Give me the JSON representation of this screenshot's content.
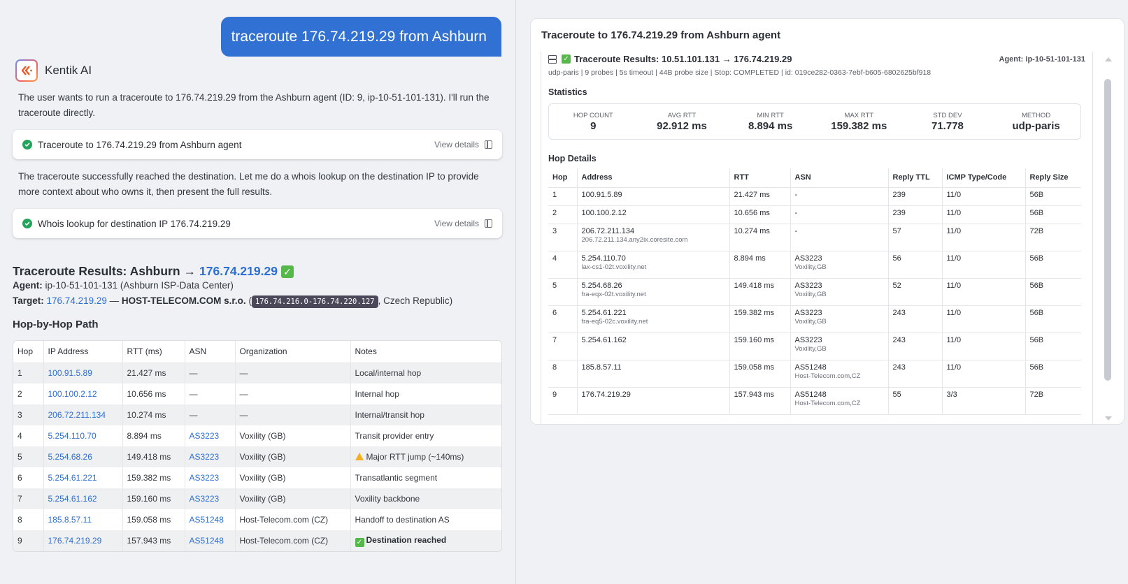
{
  "user_message": "traceroute 176.74.219.29 from Ashburn",
  "assistant": {
    "name": "Kentik AI",
    "intro_text": "The user wants to run a traceroute to 176.74.219.29 from the Ashburn agent (ID: 9, ip-10-51-101-131). I'll run the traceroute directly.",
    "tool_calls": [
      {
        "title": "Traceroute to 176.74.219.29 from Ashburn agent",
        "status": "success",
        "action_label": "View details"
      },
      {
        "title": "Whois lookup for destination IP 176.74.219.29",
        "status": "success",
        "action_label": "View details"
      }
    ],
    "middle_text": "The traceroute successfully reached the destination. Let me do a whois lookup on the destination IP to provide more context about who owns it, then present the full results.",
    "results": {
      "title_prefix": "Traceroute Results: Ashburn",
      "arrow": "→",
      "title_ip": "176.74.219.29",
      "agent_label": "Agent:",
      "agent_value": "ip-10-51-101-131 (Ashburn ISP-Data Center)",
      "target_label": "Target:",
      "target_ip": "176.74.219.29",
      "target_dash": "—",
      "target_org": "HOST-TELECOM.COM s.r.o.",
      "target_range": "176.74.216.0-176.74.220.127",
      "target_country": ", Czech Republic)",
      "section_title": "Hop-by-Hop Path",
      "columns": [
        "Hop",
        "IP Address",
        "RTT (ms)",
        "ASN",
        "Organization",
        "Notes"
      ],
      "rows": [
        {
          "hop": "1",
          "ip": "100.91.5.89",
          "rtt": "21.427 ms",
          "asn": "—",
          "org": "—",
          "notes": "Local/internal hop",
          "flag": ""
        },
        {
          "hop": "2",
          "ip": "100.100.2.12",
          "rtt": "10.656 ms",
          "asn": "—",
          "org": "—",
          "notes": "Internal hop",
          "flag": ""
        },
        {
          "hop": "3",
          "ip": "206.72.211.134",
          "rtt": "10.274 ms",
          "asn": "—",
          "org": "—",
          "notes": "Internal/transit hop",
          "flag": ""
        },
        {
          "hop": "4",
          "ip": "5.254.110.70",
          "rtt": "8.894 ms",
          "asn": "AS3223",
          "org": "Voxility (GB)",
          "notes": "Transit provider entry",
          "flag": ""
        },
        {
          "hop": "5",
          "ip": "5.254.68.26",
          "rtt": "149.418 ms",
          "asn": "AS3223",
          "org": "Voxility (GB)",
          "notes": "Major RTT jump (~140ms)",
          "flag": "warning"
        },
        {
          "hop": "6",
          "ip": "5.254.61.221",
          "rtt": "159.382 ms",
          "asn": "AS3223",
          "org": "Voxility (GB)",
          "notes": "Transatlantic segment",
          "flag": ""
        },
        {
          "hop": "7",
          "ip": "5.254.61.162",
          "rtt": "159.160 ms",
          "asn": "AS3223",
          "org": "Voxility (GB)",
          "notes": "Voxility backbone",
          "flag": ""
        },
        {
          "hop": "8",
          "ip": "185.8.57.11",
          "rtt": "159.058 ms",
          "asn": "AS51248",
          "org": "Host-Telecom.com (CZ)",
          "notes": "Handoff to destination AS",
          "flag": ""
        },
        {
          "hop": "9",
          "ip": "176.74.219.29",
          "rtt": "157.943 ms",
          "asn": "AS51248",
          "org": "Host-Telecom.com (CZ)",
          "notes": "Destination reached",
          "flag": "success"
        }
      ]
    }
  },
  "details_panel": {
    "title": "Traceroute to 176.74.219.29 from Ashburn agent",
    "result_title": "Traceroute Results: 10.51.101.131 → 176.74.219.29",
    "agent": "Agent: ip-10-51-101-131",
    "subtitle": "udp-paris | 9 probes | 5s timeout | 44B probe size | Stop: COMPLETED | id: 019ce282-0363-7ebf-b605-6802625bf918",
    "statistics_title": "Statistics",
    "stats": [
      {
        "label": "Hop Count",
        "value": "9"
      },
      {
        "label": "Avg RTT",
        "value": "92.912 ms"
      },
      {
        "label": "Min RTT",
        "value": "8.894 ms"
      },
      {
        "label": "Max RTT",
        "value": "159.382 ms"
      },
      {
        "label": "Std Dev",
        "value": "71.778"
      },
      {
        "label": "Method",
        "value": "udp-paris"
      }
    ],
    "hop_details_title": "Hop Details",
    "columns": [
      "Hop",
      "Address",
      "RTT",
      "ASN",
      "Reply TTL",
      "ICMP Type/Code",
      "Reply Size"
    ],
    "rows": [
      {
        "hop": "1",
        "address": "100.91.5.89",
        "hostname": "",
        "rtt": "21.427 ms",
        "asn": "-",
        "asn_org": "",
        "ttl": "239",
        "icmp": "11/0",
        "size": "56B"
      },
      {
        "hop": "2",
        "address": "100.100.2.12",
        "hostname": "",
        "rtt": "10.656 ms",
        "asn": "-",
        "asn_org": "",
        "ttl": "239",
        "icmp": "11/0",
        "size": "56B"
      },
      {
        "hop": "3",
        "address": "206.72.211.134",
        "hostname": "206.72.211.134.any2ix.coresite.com",
        "rtt": "10.274 ms",
        "asn": "-",
        "asn_org": "",
        "ttl": "57",
        "icmp": "11/0",
        "size": "72B"
      },
      {
        "hop": "4",
        "address": "5.254.110.70",
        "hostname": "lax-cs1-02t.voxility.net",
        "rtt": "8.894 ms",
        "asn": "AS3223",
        "asn_org": "Voxility,GB",
        "ttl": "56",
        "icmp": "11/0",
        "size": "56B"
      },
      {
        "hop": "5",
        "address": "5.254.68.26",
        "hostname": "fra-eqx-02t.voxility.net",
        "rtt": "149.418 ms",
        "asn": "AS3223",
        "asn_org": "Voxility,GB",
        "ttl": "52",
        "icmp": "11/0",
        "size": "56B"
      },
      {
        "hop": "6",
        "address": "5.254.61.221",
        "hostname": "fra-eq5-02c.voxility.net",
        "rtt": "159.382 ms",
        "asn": "AS3223",
        "asn_org": "Voxility,GB",
        "ttl": "243",
        "icmp": "11/0",
        "size": "56B"
      },
      {
        "hop": "7",
        "address": "5.254.61.162",
        "hostname": "",
        "rtt": "159.160 ms",
        "asn": "AS3223",
        "asn_org": "Voxility,GB",
        "ttl": "243",
        "icmp": "11/0",
        "size": "56B"
      },
      {
        "hop": "8",
        "address": "185.8.57.11",
        "hostname": "",
        "rtt": "159.058 ms",
        "asn": "AS51248",
        "asn_org": "Host-Telecom.com,CZ",
        "ttl": "243",
        "icmp": "11/0",
        "size": "56B"
      },
      {
        "hop": "9",
        "address": "176.74.219.29",
        "hostname": "",
        "rtt": "157.943 ms",
        "asn": "AS51248",
        "asn_org": "Host-Telecom.com,CZ",
        "ttl": "55",
        "icmp": "3/3",
        "size": "72B"
      }
    ]
  },
  "colors": {
    "accent": "#3171d3",
    "link": "#2b6fd6",
    "success": "#23a45b",
    "warning": "#f2b01e",
    "background": "#eff1f5"
  }
}
